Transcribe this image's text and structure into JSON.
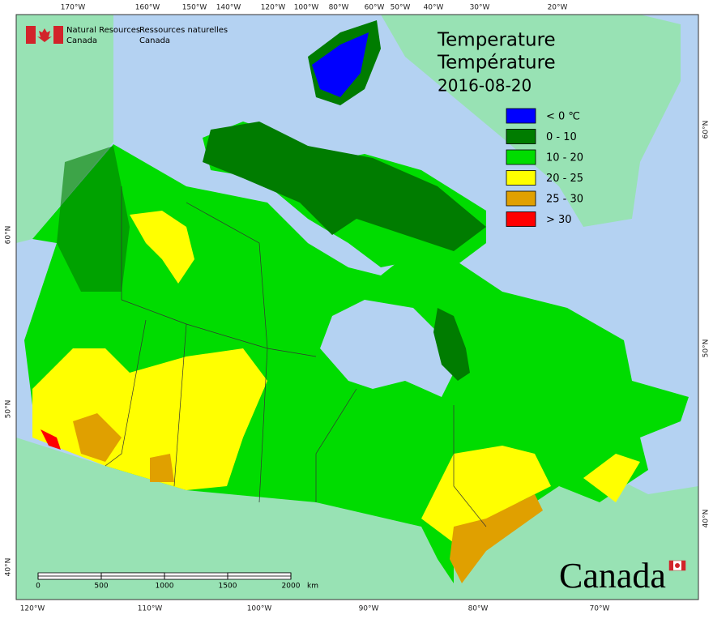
{
  "header": {
    "agency_en": [
      "Natural Resources",
      "Canada"
    ],
    "agency_fr": [
      "Ressources naturelles",
      "Canada"
    ]
  },
  "title": [
    "Temperature",
    "Température"
  ],
  "date": "2016-08-20",
  "legend": [
    {
      "label": "< 0 ℃",
      "color": "#0000ff"
    },
    {
      "label": "0 - 10",
      "color": "#007c00"
    },
    {
      "label": "10 - 20",
      "color": "#00dc00"
    },
    {
      "label": "20 - 25",
      "color": "#ffff00"
    },
    {
      "label": "25 - 30",
      "color": "#e0a000"
    },
    {
      "label": "> 30",
      "color": "#ff0000"
    }
  ],
  "scale_bar": {
    "ticks": [
      0,
      500,
      1000,
      1500,
      2000
    ],
    "unit": "km"
  },
  "graticule": {
    "top": [
      "170°W",
      "160°W",
      "150°W",
      "140°W",
      "120°W",
      "100°W",
      "80°W",
      "60°W",
      "50°W",
      "40°W",
      "30°W",
      "20°W"
    ],
    "bottom": [
      "120°W",
      "110°W",
      "100°W",
      "90°W",
      "80°W",
      "70°W"
    ],
    "left": [
      "60°N",
      "50°N",
      "40°N"
    ],
    "right": [
      "60°N",
      "50°N",
      "40°N"
    ]
  },
  "wordmark": "Canada"
}
